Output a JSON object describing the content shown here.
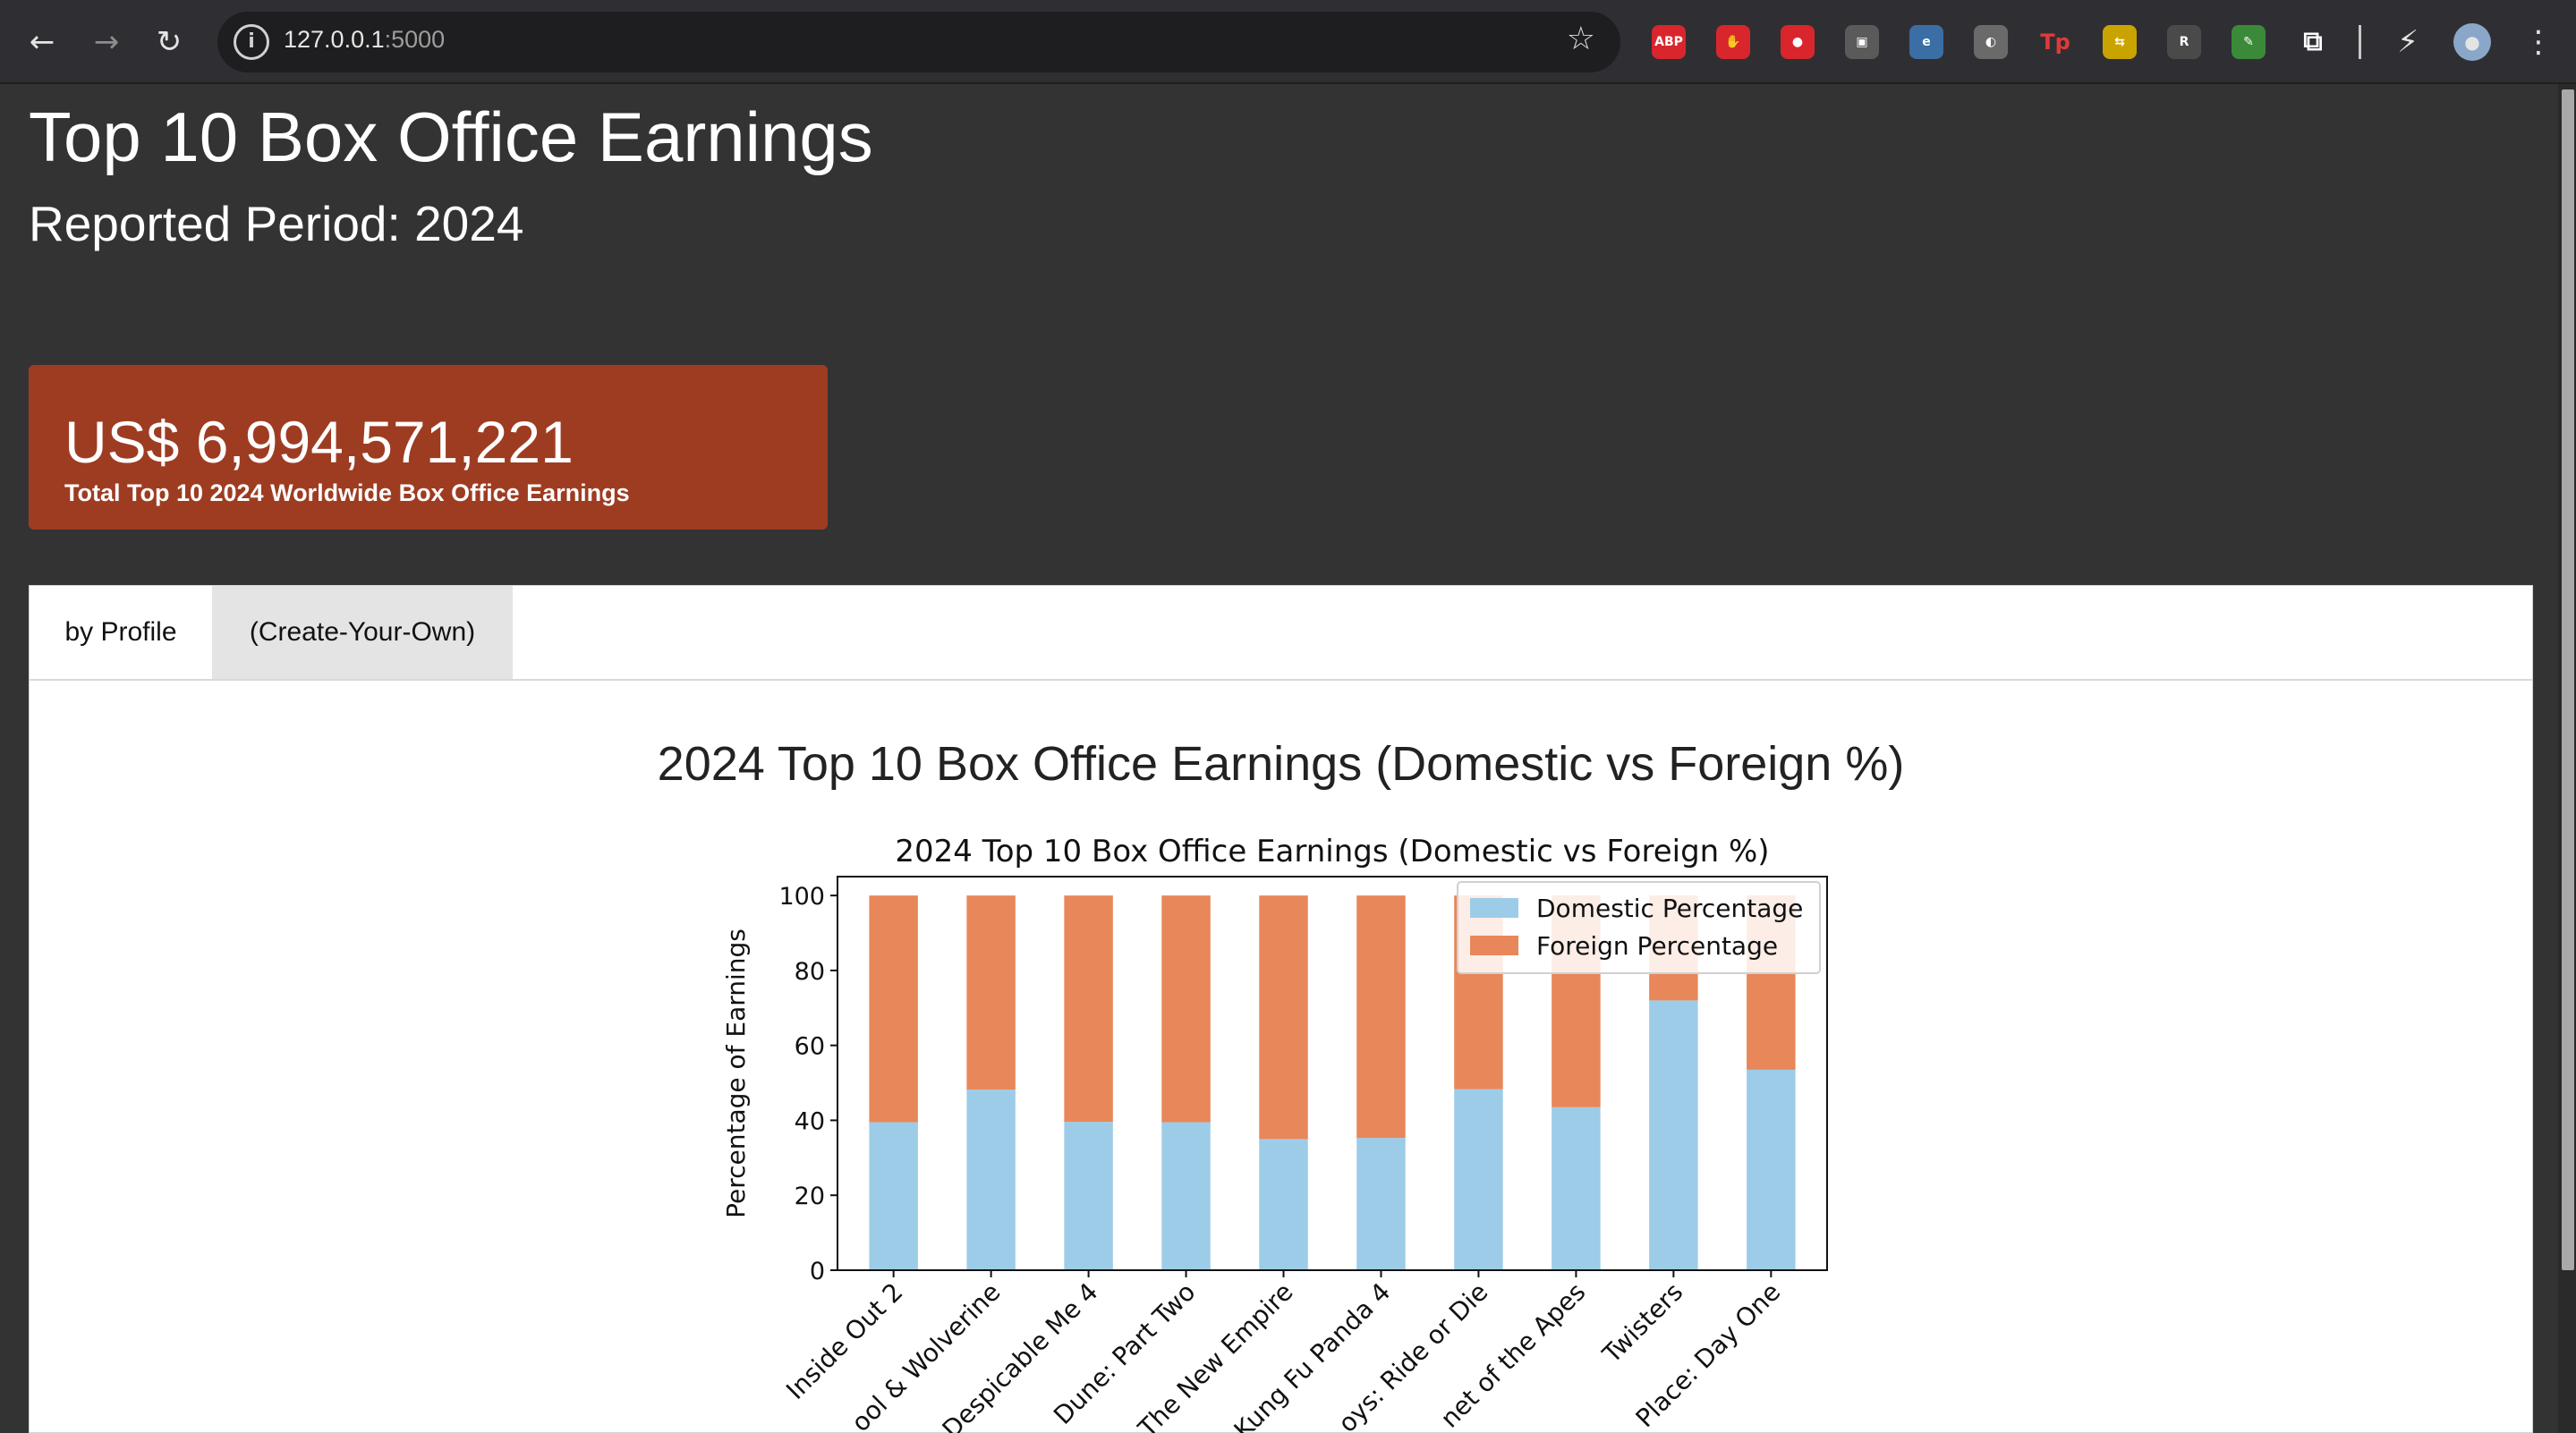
{
  "browser": {
    "url_host": "127.0.0.1",
    "url_port": ":5000",
    "extensions": [
      {
        "icon": "adblock-plus-icon",
        "label": "ABP",
        "color": "#d8262c"
      },
      {
        "icon": "hand-stop-icon",
        "label": "✋",
        "color": "#d8262c"
      },
      {
        "icon": "record-icon",
        "label": "●",
        "color": "#d8262c"
      },
      {
        "icon": "picture-in-picture-icon",
        "label": "▣",
        "color": "#5a5a5a"
      },
      {
        "icon": "edge-e-icon",
        "label": "e",
        "color": "#3a6ea5"
      },
      {
        "icon": "gamepad-icon",
        "label": "◐",
        "color": "#6a6a6a"
      },
      {
        "icon": "tp-icon",
        "label": "Tp",
        "color": "#2f2f33"
      },
      {
        "icon": "yellow-tag-icon",
        "label": "⇆",
        "color": "#c9a400"
      },
      {
        "icon": "dark-r-icon",
        "label": "R",
        "color": "#4a4a4a"
      },
      {
        "icon": "color-picker-icon",
        "label": "✎",
        "color": "#3a8a3a"
      },
      {
        "icon": "puzzle-icon",
        "label": "⧉",
        "color": "#2f2f33"
      }
    ]
  },
  "header": {
    "title": "Top 10 Box Office Earnings",
    "subtitle": "Reported Period: 2024"
  },
  "kpi": {
    "value": "US$ 6,994,571,221",
    "label": "Total Top 10 2024 Worldwide Box Office Earnings"
  },
  "tabs": [
    {
      "label": "by Profile"
    },
    {
      "label": "(Create-Your-Own)"
    }
  ],
  "chart_heading": "2024 Top 10 Box Office Earnings (Domestic vs Foreign %)",
  "colors": {
    "domestic": "#9dcce8",
    "foreign": "#e8875a",
    "kpi_card": "#9e3c22"
  },
  "chart_data": {
    "type": "bar",
    "stacked": true,
    "title": "2024 Top 10 Box Office Earnings (Domestic vs Foreign %)",
    "xlabel": "",
    "ylabel": "Percentage of Earnings",
    "ylim": [
      0,
      100
    ],
    "yticks": [
      "0",
      "20",
      "40",
      "60",
      "80",
      "100"
    ],
    "legend_position": "top-right",
    "categories": [
      "Inside Out 2",
      "Deadpool & Wolverine",
      "Despicable Me 4",
      "Dune: Part Two",
      "Godzilla x Kong: The New Empire",
      "Kung Fu Panda 4",
      "Bad Boys: Ride or Die",
      "Kingdom of the Planet of the Apes",
      "Twisters",
      "A Quiet Place: Day One"
    ],
    "category_labels_visible": [
      "Inside Out 2",
      "ool & Wolverine",
      "Despicable Me 4",
      "Dune: Part Two",
      "The New Empire",
      "Kung Fu Panda 4",
      "oys: Ride or Die",
      "net of the Apes",
      "Twisters",
      "Place: Day One"
    ],
    "series": [
      {
        "name": "Domestic Percentage",
        "values": [
          39.5,
          48.2,
          39.6,
          39.5,
          35.0,
          35.3,
          48.3,
          43.5,
          72.0,
          53.5
        ]
      },
      {
        "name": "Foreign Percentage",
        "values": [
          60.5,
          51.8,
          60.4,
          60.5,
          65.0,
          64.7,
          51.7,
          56.5,
          28.0,
          46.5
        ]
      }
    ]
  }
}
